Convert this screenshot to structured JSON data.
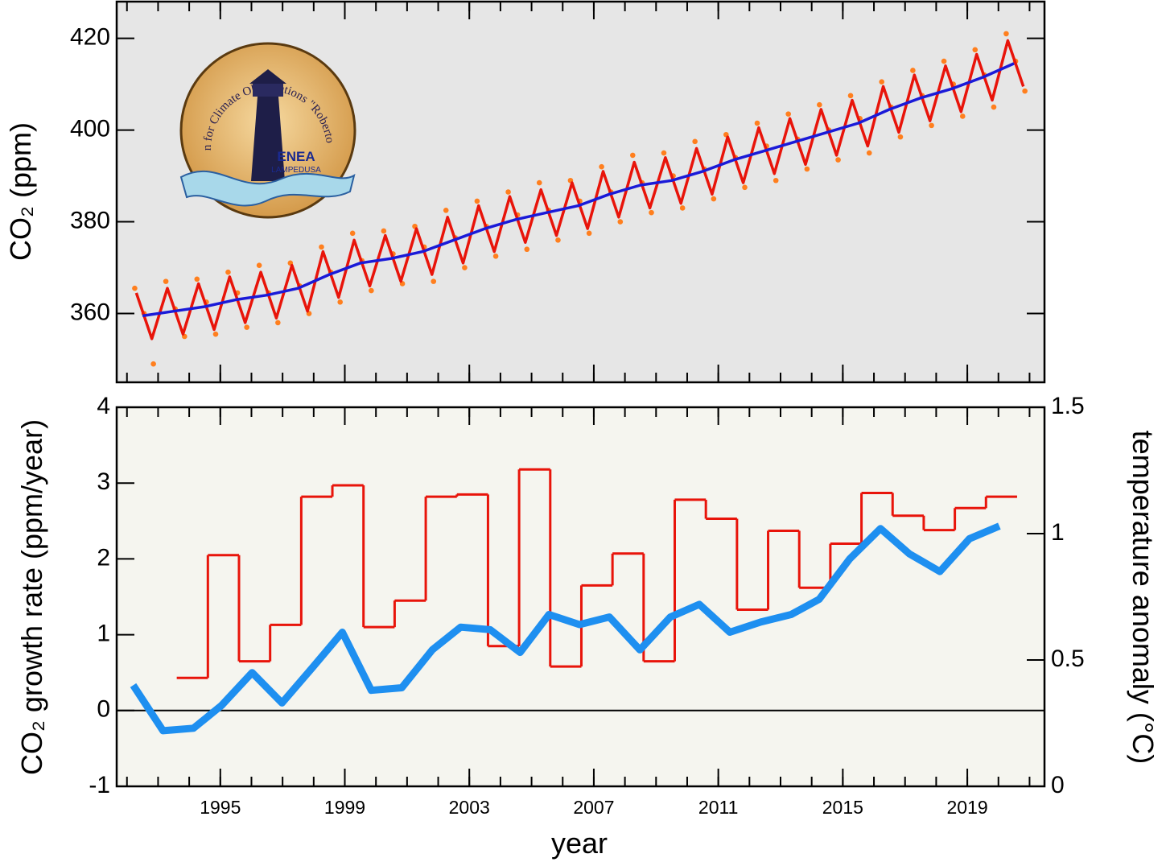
{
  "chart_data": [
    {
      "type": "line",
      "y_label": "CO₂  (ppm)",
      "logo": {
        "text": "Station for Climate Observations \"Roberto Sarao\"",
        "brand": "ENEA",
        "place": "LAMPEDUSA"
      },
      "xlim": [
        1991.67,
        2021.48
      ],
      "xticks": [
        1995,
        1999,
        2003,
        2007,
        2011,
        2015,
        2019
      ],
      "xtick_labels": false,
      "ylim": [
        345,
        428
      ],
      "yticks": [
        360,
        380,
        400,
        420
      ],
      "series": [
        {
          "type": "scatter",
          "color": "#ff7f1e",
          "x": [
            1992.25,
            1992.55,
            1992.85,
            1993.25,
            1993.55,
            1993.85,
            1994.25,
            1994.55,
            1994.85,
            1995.25,
            1995.55,
            1995.85,
            1996.25,
            1996.55,
            1996.85,
            1997.25,
            1997.55,
            1997.85,
            1998.25,
            1998.55,
            1998.85,
            1999.25,
            1999.55,
            1999.85,
            2000.25,
            2000.55,
            2000.85,
            2001.25,
            2001.55,
            2001.85,
            2002.25,
            2002.55,
            2002.85,
            2003.25,
            2003.55,
            2003.85,
            2004.25,
            2004.55,
            2004.85,
            2005.25,
            2005.55,
            2005.85,
            2006.25,
            2006.55,
            2006.85,
            2007.25,
            2007.55,
            2007.85,
            2008.25,
            2008.55,
            2008.85,
            2009.25,
            2009.55,
            2009.85,
            2010.25,
            2010.55,
            2010.85,
            2011.25,
            2011.55,
            2011.85,
            2012.25,
            2012.55,
            2012.85,
            2013.25,
            2013.55,
            2013.85,
            2014.25,
            2014.55,
            2014.85,
            2015.25,
            2015.55,
            2015.85,
            2016.25,
            2016.55,
            2016.85,
            2017.25,
            2017.55,
            2017.85,
            2018.25,
            2018.55,
            2018.85,
            2019.25,
            2019.55,
            2019.85,
            2020.25,
            2020.55,
            2020.85
          ],
          "values": [
            365.5,
            360,
            349,
            367,
            361,
            355,
            367.5,
            362.5,
            355.5,
            369,
            364.5,
            357,
            370.5,
            364.5,
            358,
            371,
            366,
            360,
            374.5,
            369,
            362.5,
            377.5,
            371.5,
            365,
            378,
            373,
            366.5,
            379,
            374.5,
            367,
            382.5,
            376.5,
            370,
            384.5,
            379,
            372.5,
            386.5,
            381.5,
            374,
            388.5,
            382.5,
            376,
            389,
            384.5,
            377.5,
            392,
            386.5,
            380,
            394.5,
            388.5,
            382,
            395,
            390,
            383,
            397.5,
            391.5,
            385,
            399,
            394,
            387.5,
            401.5,
            396.5,
            389,
            403.5,
            398,
            391.5,
            405.5,
            400,
            393.5,
            407.5,
            402.5,
            395,
            410.5,
            405,
            398.5,
            413,
            407.5,
            401,
            415,
            410,
            403,
            417.5,
            412,
            405,
            421,
            415,
            408.5
          ]
        },
        {
          "type": "line",
          "color": "#e8140a",
          "x": [
            1992.3,
            1992.8,
            1993.3,
            1993.8,
            1994.3,
            1994.8,
            1995.3,
            1995.8,
            1996.3,
            1996.8,
            1997.3,
            1997.8,
            1998.3,
            1998.8,
            1999.3,
            1999.8,
            2000.3,
            2000.8,
            2001.3,
            2001.8,
            2002.3,
            2002.8,
            2003.3,
            2003.8,
            2004.3,
            2004.8,
            2005.3,
            2005.8,
            2006.3,
            2006.8,
            2007.3,
            2007.8,
            2008.3,
            2008.8,
            2009.3,
            2009.8,
            2010.3,
            2010.8,
            2011.3,
            2011.8,
            2012.3,
            2012.8,
            2013.3,
            2013.8,
            2014.3,
            2014.8,
            2015.3,
            2015.8,
            2016.3,
            2016.8,
            2017.3,
            2017.8,
            2018.3,
            2018.8,
            2019.3,
            2019.8,
            2020.3,
            2020.8
          ],
          "values": [
            364.5,
            354.5,
            365.5,
            355.5,
            366.5,
            356.5,
            368,
            358,
            369,
            359,
            370.5,
            360.5,
            373.5,
            363.5,
            376,
            366,
            377,
            367,
            378.5,
            368.5,
            381,
            371,
            383.5,
            373.5,
            385.5,
            375.5,
            387,
            377,
            388.5,
            378.5,
            391,
            381,
            393,
            383,
            394,
            384,
            396,
            386,
            398.5,
            388.5,
            400.5,
            390.5,
            402.5,
            392.5,
            404.5,
            394.5,
            406.5,
            396.5,
            409.5,
            399.5,
            412,
            402,
            414,
            404,
            416.5,
            406.5,
            419.5,
            409.5
          ]
        },
        {
          "type": "line",
          "color": "#1a1ad8",
          "x": [
            1992.5,
            1993.5,
            1994.5,
            1995.5,
            1996.5,
            1997.5,
            1998.5,
            1999.5,
            2000.5,
            2001.5,
            2002.5,
            2003.5,
            2004.5,
            2005.5,
            2006.5,
            2007.5,
            2008.5,
            2009.5,
            2010.5,
            2011.5,
            2012.5,
            2013.5,
            2014.5,
            2015.5,
            2016.5,
            2017.5,
            2018.5,
            2019.5,
            2020.5
          ],
          "values": [
            359.5,
            360.5,
            361.5,
            363,
            364,
            365.5,
            368.5,
            371,
            372,
            373.5,
            376,
            378.5,
            380.5,
            382,
            383.5,
            386,
            388,
            389,
            391,
            393.5,
            395.5,
            397.5,
            399.5,
            401.5,
            404.5,
            407,
            409,
            411.5,
            414.5
          ]
        }
      ]
    },
    {
      "type": "line",
      "x_label": "year",
      "y_label": "CO₂ growth rate (ppm/year)",
      "y2_label": "temperature anomaly (°C)",
      "xlim": [
        1991.67,
        2021.48
      ],
      "xticks": [
        1995,
        1999,
        2003,
        2007,
        2011,
        2015,
        2019
      ],
      "ylim": [
        -1,
        4
      ],
      "yticks": [
        -1,
        0,
        1,
        2,
        3,
        4
      ],
      "y2lim": [
        0,
        1.5
      ],
      "y2ticks": [
        0,
        0.5,
        1,
        1.5
      ],
      "zero_line": true,
      "series": [
        {
          "type": "step",
          "color": "#e8140a",
          "bins": [
            1993.6,
            1994.6,
            1995.6,
            1996.6,
            1997.6,
            1998.6,
            1999.6,
            2000.6,
            2001.6,
            2002.6,
            2003.6,
            2004.6,
            2005.6,
            2006.6,
            2007.6,
            2008.6,
            2009.6,
            2010.6,
            2011.6,
            2012.6,
            2013.6,
            2014.6,
            2015.6,
            2016.6,
            2017.6,
            2018.6,
            2019.6,
            2020.6
          ],
          "values": [
            0.43,
            2.05,
            0.65,
            1.13,
            2.82,
            2.97,
            1.1,
            1.45,
            2.82,
            2.85,
            0.85,
            3.18,
            0.58,
            1.65,
            2.07,
            0.65,
            2.78,
            2.53,
            1.33,
            2.37,
            1.62,
            2.2,
            2.87,
            2.57,
            2.38,
            2.67,
            2.82
          ]
        },
        {
          "type": "line",
          "color": "#1e8ff0",
          "axis": "y2",
          "x": [
            1992.2,
            1993.16,
            1994.14,
            1995.04,
            1996.02,
            1996.98,
            1997.96,
            1998.92,
            1999.85,
            2000.83,
            2001.81,
            2002.72,
            2003.67,
            2004.63,
            2005.56,
            2006.54,
            2007.5,
            2008.48,
            2009.46,
            2010.39,
            2011.37,
            2012.36,
            2013.34,
            2014.24,
            2015.22,
            2016.21,
            2017.14,
            2018.12,
            2019.07,
            2020.03
          ],
          "values": [
            0.4,
            0.22,
            0.23,
            0.32,
            0.45,
            0.33,
            0.47,
            0.61,
            0.38,
            0.39,
            0.54,
            0.63,
            0.62,
            0.53,
            0.68,
            0.64,
            0.67,
            0.54,
            0.67,
            0.72,
            0.61,
            0.65,
            0.68,
            0.74,
            0.9,
            1.02,
            0.92,
            0.85,
            0.98,
            1.03
          ]
        }
      ]
    }
  ]
}
